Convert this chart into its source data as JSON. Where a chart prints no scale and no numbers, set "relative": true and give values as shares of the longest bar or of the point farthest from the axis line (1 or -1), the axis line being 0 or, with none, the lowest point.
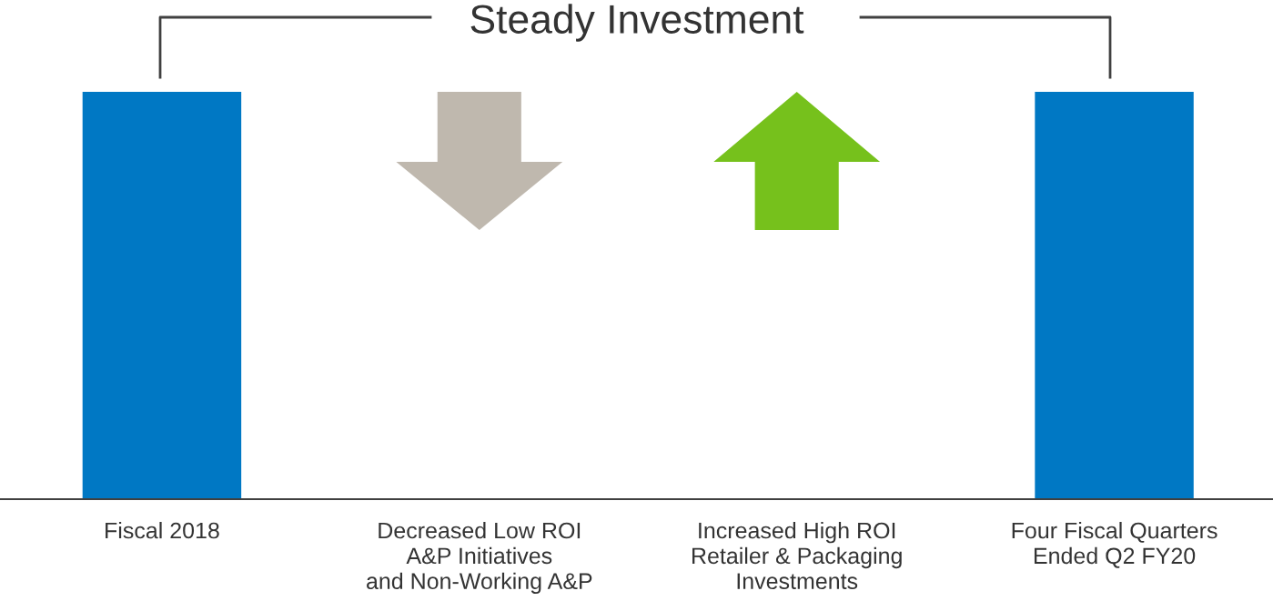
{
  "chart_data": {
    "type": "bar",
    "title": "Steady Investment",
    "relative": true,
    "categories": [
      "Fiscal 2018",
      "Decreased Low ROI\nA&P Initiatives\nand Non-Working A&P",
      "Increased High ROI\nRetailer & Packaging\nInvestments",
      "Four Fiscal Quarters\nEnded Q2 FY20"
    ],
    "values": [
      1,
      null,
      null,
      1
    ],
    "color": "#0078c4",
    "grid": false,
    "legend": false
  }
}
